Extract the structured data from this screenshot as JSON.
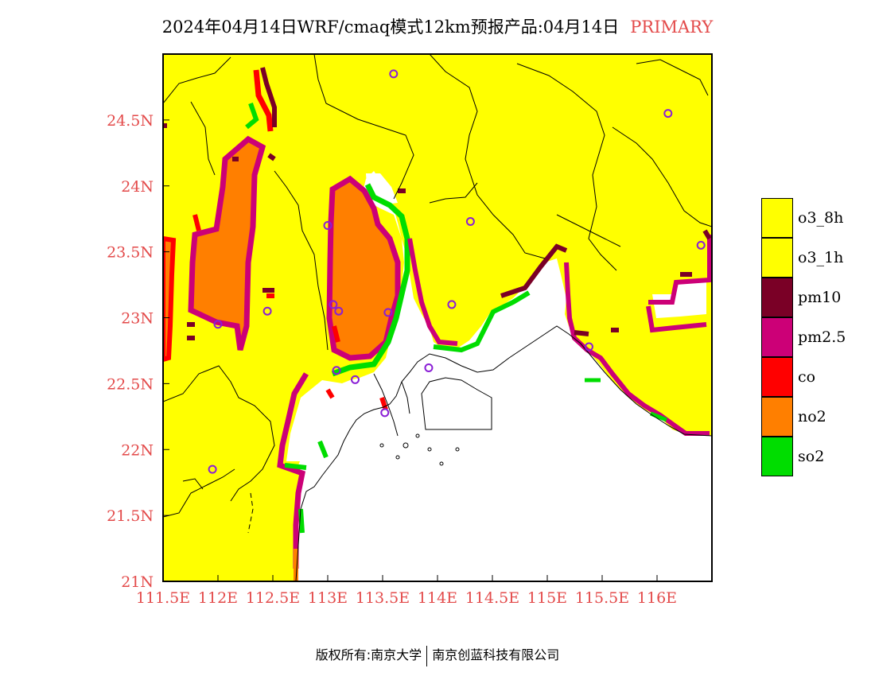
{
  "title": {
    "main": "2024年04月14日WRF/cmaq模式12km预报产品:04月14日",
    "tag": "PRIMARY",
    "tag_color": "#e34a4a"
  },
  "axes": {
    "lon_ticks": [
      "111.5E",
      "112E",
      "112.5E",
      "113E",
      "113.5E",
      "114E",
      "114.5E",
      "115E",
      "115.5E",
      "116E"
    ],
    "lat_ticks": [
      "21N",
      "21.5N",
      "22N",
      "22.5N",
      "23N",
      "23.5N",
      "24N",
      "24.5N"
    ],
    "lon_range": [
      111.5,
      116.5
    ],
    "lat_range": [
      21,
      25
    ],
    "tick_color": "#e34a4a"
  },
  "legend": [
    {
      "label": "o3_8h",
      "color": "#ffff00"
    },
    {
      "label": "o3_1h",
      "color": "#ffff00"
    },
    {
      "label": "pm10",
      "color": "#7a0026"
    },
    {
      "label": "pm2.5",
      "color": "#cc0077"
    },
    {
      "label": "co",
      "color": "#ff0000"
    },
    {
      "label": "no2",
      "color": "#ff7f00"
    },
    {
      "label": "so2",
      "color": "#00dd00"
    }
  ],
  "stations": [
    {
      "lon": 113.6,
      "lat": 24.85
    },
    {
      "lon": 116.1,
      "lat": 24.55
    },
    {
      "lon": 114.3,
      "lat": 23.73
    },
    {
      "lon": 116.4,
      "lat": 23.55
    },
    {
      "lon": 113.05,
      "lat": 23.1
    },
    {
      "lon": 113.0,
      "lat": 23.7
    },
    {
      "lon": 112.45,
      "lat": 23.05
    },
    {
      "lon": 112.0,
      "lat": 22.95
    },
    {
      "lon": 113.1,
      "lat": 23.05
    },
    {
      "lon": 113.25,
      "lat": 22.53
    },
    {
      "lon": 113.55,
      "lat": 23.04
    },
    {
      "lon": 114.13,
      "lat": 23.1
    },
    {
      "lon": 113.52,
      "lat": 22.28
    },
    {
      "lon": 113.08,
      "lat": 22.6
    },
    {
      "lon": 113.92,
      "lat": 22.62
    },
    {
      "lon": 115.38,
      "lat": 22.78
    },
    {
      "lon": 111.95,
      "lat": 21.85
    }
  ],
  "footer": {
    "left": "版权所有:南京大学",
    "right": "南京创蓝科技有限公司"
  }
}
